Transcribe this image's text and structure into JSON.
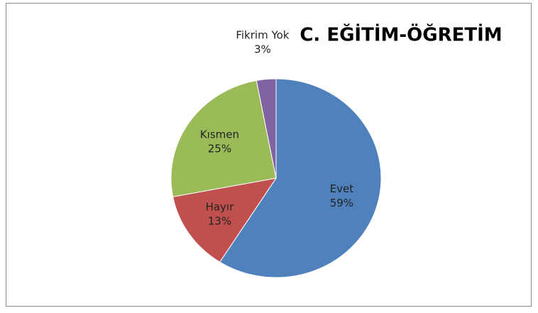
{
  "chart_data": {
    "type": "pie",
    "title": "C. EĞİTİM-ÖĞRETİM",
    "categories": [
      "Evet",
      "Hayır",
      "Kısmen",
      "Fikrim Yok"
    ],
    "values": [
      59,
      13,
      25,
      3
    ],
    "value_labels": [
      "59%",
      "13%",
      "25%",
      "3%"
    ],
    "colors": [
      "#4f81bd",
      "#c0504d",
      "#9bbb59",
      "#8064a2"
    ]
  }
}
